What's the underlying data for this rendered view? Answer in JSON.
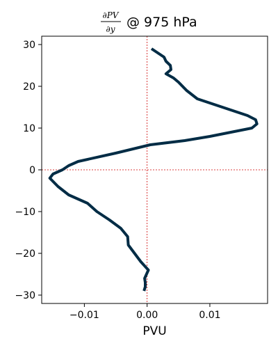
{
  "chart_data": {
    "type": "line",
    "title_fraction": {
      "numerator": "∂PV",
      "denominator": "∂y"
    },
    "title": "@ 975 hPa",
    "xlabel": "PVU",
    "ylabel": "",
    "xlim": [
      -0.0168,
      0.0192
    ],
    "ylim": [
      -32,
      32
    ],
    "x_ticks": [
      -0.01,
      0.0,
      0.01
    ],
    "x_tick_labels": [
      "−0.01",
      "0.00",
      "0.01"
    ],
    "y_ticks": [
      -30,
      -20,
      -10,
      0,
      10,
      20,
      30
    ],
    "y_tick_labels": [
      "−30",
      "−20",
      "−10",
      "0",
      "10",
      "20",
      "30"
    ],
    "reference_lines": {
      "x": 0,
      "y": 0,
      "color": "#cc0000"
    },
    "series": [
      {
        "name": "dPV/dy",
        "color": "#012c45",
        "points": [
          {
            "x": -0.0005,
            "y": -29
          },
          {
            "x": -0.0003,
            "y": -28
          },
          {
            "x": -0.0003,
            "y": -27
          },
          {
            "x": -0.0004,
            "y": -26
          },
          {
            "x": 0.0002,
            "y": -24
          },
          {
            "x": -0.001,
            "y": -22
          },
          {
            "x": -0.002,
            "y": -20
          },
          {
            "x": -0.003,
            "y": -18
          },
          {
            "x": -0.0031,
            "y": -16
          },
          {
            "x": -0.0042,
            "y": -14
          },
          {
            "x": -0.006,
            "y": -12
          },
          {
            "x": -0.008,
            "y": -10
          },
          {
            "x": -0.0095,
            "y": -8
          },
          {
            "x": -0.0125,
            "y": -6
          },
          {
            "x": -0.0142,
            "y": -4
          },
          {
            "x": -0.0155,
            "y": -2
          },
          {
            "x": -0.015,
            "y": -1
          },
          {
            "x": -0.0135,
            "y": 0
          },
          {
            "x": -0.0125,
            "y": 1
          },
          {
            "x": -0.011,
            "y": 2
          },
          {
            "x": -0.005,
            "y": 4
          },
          {
            "x": 0.0005,
            "y": 6
          },
          {
            "x": 0.006,
            "y": 7
          },
          {
            "x": 0.01,
            "y": 8
          },
          {
            "x": 0.0167,
            "y": 10
          },
          {
            "x": 0.0175,
            "y": 11
          },
          {
            "x": 0.0173,
            "y": 12
          },
          {
            "x": 0.016,
            "y": 13
          },
          {
            "x": 0.012,
            "y": 15
          },
          {
            "x": 0.008,
            "y": 17
          },
          {
            "x": 0.0063,
            "y": 19
          },
          {
            "x": 0.005,
            "y": 21
          },
          {
            "x": 0.0042,
            "y": 22
          },
          {
            "x": 0.003,
            "y": 23
          },
          {
            "x": 0.0038,
            "y": 24
          },
          {
            "x": 0.0037,
            "y": 25
          },
          {
            "x": 0.003,
            "y": 26
          },
          {
            "x": 0.0027,
            "y": 27
          },
          {
            "x": 0.0007,
            "y": 29
          }
        ]
      }
    ]
  }
}
